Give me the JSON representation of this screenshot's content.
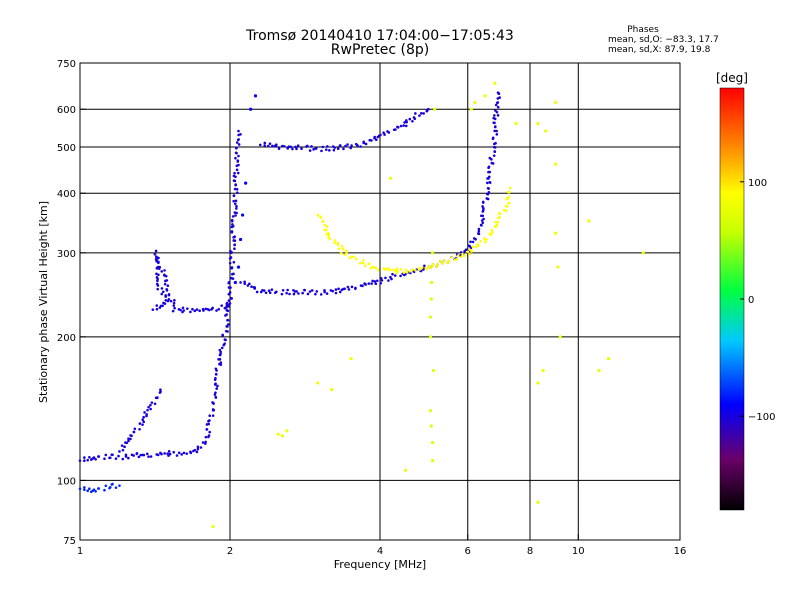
{
  "chart_data": {
    "type": "scatter",
    "title": "Tromsø 20140410 17:04:00−17:05:43",
    "subtitle": "RwPretec (8p)",
    "xlabel": "Frequency [MHz]",
    "ylabel": "Stationary phase Virtual Height [km]",
    "x_scale": "log",
    "y_scale": "log",
    "xlim": [
      1,
      16
    ],
    "ylim": [
      75,
      750
    ],
    "x_ticks": [
      1,
      2,
      4,
      6,
      8,
      10,
      16
    ],
    "y_ticks": [
      75,
      100,
      200,
      300,
      400,
      500,
      600,
      750
    ],
    "x_gridlines": [
      2,
      4,
      6,
      8,
      10
    ],
    "y_gridlines": [
      100,
      200,
      300,
      400,
      500,
      600
    ],
    "phase_stats": {
      "title": "Phases",
      "o_line": "mean, sd,O:  −83.3, 17.7",
      "x_line": "mean, sd,X:  87.9, 19.8"
    },
    "colorbar": {
      "label": "[deg]",
      "min": -180,
      "max": 180,
      "ticks": [
        "100",
        "0",
        "−100"
      ],
      "tick_values": [
        100,
        0,
        -100
      ]
    },
    "traces": [
      {
        "name": "low-trace-bottom",
        "phase": -80,
        "points": [
          [
            1.0,
            96
          ],
          [
            1.05,
            95
          ],
          [
            1.1,
            96
          ],
          [
            1.15,
            97
          ],
          [
            1.2,
            97.5
          ]
        ]
      },
      {
        "name": "E-trace",
        "phase": -100,
        "points": [
          [
            1.0,
            110
          ],
          [
            1.05,
            111
          ],
          [
            1.1,
            112
          ],
          [
            1.15,
            112
          ],
          [
            1.2,
            112
          ],
          [
            1.3,
            113
          ],
          [
            1.4,
            113
          ],
          [
            1.5,
            114
          ],
          [
            1.6,
            114
          ],
          [
            1.7,
            115
          ],
          [
            1.75,
            118
          ],
          [
            1.8,
            125
          ],
          [
            1.85,
            145
          ],
          [
            1.9,
            175
          ],
          [
            1.95,
            200
          ],
          [
            2.0,
            240
          ],
          [
            2.02,
            300
          ],
          [
            2.05,
            400
          ],
          [
            2.07,
            500
          ],
          [
            2.08,
            540
          ]
        ]
      },
      {
        "name": "E-trace-upper",
        "phase": -100,
        "points": [
          [
            1.2,
            115
          ],
          [
            1.25,
            122
          ],
          [
            1.3,
            128
          ],
          [
            1.35,
            135
          ],
          [
            1.4,
            145
          ],
          [
            1.45,
            155
          ]
        ]
      },
      {
        "name": "F1-lower",
        "phase": -100,
        "points": [
          [
            1.4,
            228
          ],
          [
            1.45,
            232
          ],
          [
            1.5,
            238
          ],
          [
            1.45,
            250
          ],
          [
            1.43,
            270
          ],
          [
            1.42,
            300
          ],
          [
            1.55,
            228
          ],
          [
            1.6,
            228
          ],
          [
            1.7,
            228
          ],
          [
            1.8,
            228
          ],
          [
            1.9,
            230
          ],
          [
            1.95,
            232
          ],
          [
            2.0,
            235
          ]
        ]
      },
      {
        "name": "F-O-trace",
        "phase": -100,
        "points": [
          [
            2.1,
            260
          ],
          [
            2.3,
            250
          ],
          [
            2.5,
            248
          ],
          [
            2.8,
            248
          ],
          [
            3.0,
            248
          ],
          [
            3.3,
            250
          ],
          [
            3.6,
            255
          ],
          [
            4.0,
            262
          ],
          [
            4.5,
            272
          ],
          [
            5.0,
            280
          ],
          [
            5.5,
            290
          ],
          [
            6.0,
            305
          ],
          [
            6.2,
            320
          ],
          [
            6.4,
            350
          ],
          [
            6.5,
            380
          ],
          [
            6.6,
            420
          ],
          [
            6.7,
            470
          ],
          [
            6.8,
            530
          ],
          [
            6.85,
            600
          ],
          [
            6.9,
            650
          ]
        ]
      },
      {
        "name": "F-X-trace",
        "phase": 90,
        "points": [
          [
            3.0,
            360
          ],
          [
            3.1,
            340
          ],
          [
            3.2,
            320
          ],
          [
            3.4,
            300
          ],
          [
            3.6,
            290
          ],
          [
            3.8,
            282
          ],
          [
            4.0,
            278
          ],
          [
            4.3,
            275
          ],
          [
            4.6,
            276
          ],
          [
            5.0,
            280
          ],
          [
            5.5,
            290
          ],
          [
            6.0,
            300
          ],
          [
            6.5,
            320
          ],
          [
            6.8,
            340
          ],
          [
            7.0,
            360
          ],
          [
            7.2,
            380
          ],
          [
            7.3,
            410
          ]
        ]
      },
      {
        "name": "upper-echo",
        "phase": -100,
        "points": [
          [
            2.3,
            505
          ],
          [
            2.6,
            500
          ],
          [
            3.0,
            495
          ],
          [
            3.3,
            497
          ],
          [
            3.6,
            505
          ],
          [
            3.9,
            520
          ],
          [
            4.2,
            540
          ],
          [
            4.5,
            560
          ],
          [
            4.8,
            585
          ],
          [
            5.0,
            600
          ]
        ]
      },
      {
        "name": "scatter-vertical-2MHz",
        "phase": -90,
        "points": [
          [
            2.05,
            260
          ],
          [
            2.08,
            280
          ],
          [
            2.1,
            320
          ],
          [
            2.12,
            360
          ],
          [
            2.15,
            420
          ],
          [
            2.2,
            600
          ],
          [
            2.25,
            640
          ]
        ]
      },
      {
        "name": "scatter-5MHz-column",
        "phase": 70,
        "points": [
          [
            5.05,
            200
          ],
          [
            5.05,
            220
          ],
          [
            5.07,
            240
          ],
          [
            5.08,
            260
          ],
          [
            5.1,
            300
          ],
          [
            5.05,
            140
          ],
          [
            5.07,
            130
          ],
          [
            5.1,
            120
          ],
          [
            5.1,
            110
          ],
          [
            5.12,
            170
          ],
          [
            5.15,
            600
          ]
        ]
      },
      {
        "name": "scatter-misc",
        "phase": 80,
        "points": [
          [
            6.1,
            600
          ],
          [
            6.2,
            620
          ],
          [
            6.5,
            640
          ],
          [
            6.8,
            680
          ],
          [
            7.5,
            560
          ],
          [
            8.3,
            560
          ],
          [
            8.3,
            160
          ],
          [
            8.5,
            170
          ],
          [
            8.6,
            540
          ],
          [
            9.0,
            620
          ],
          [
            9.0,
            460
          ],
          [
            9.0,
            330
          ],
          [
            9.1,
            280
          ],
          [
            9.2,
            200
          ],
          [
            8.3,
            90
          ],
          [
            10.5,
            350
          ],
          [
            11.0,
            170
          ],
          [
            11.5,
            180
          ],
          [
            13.5,
            300
          ],
          [
            3.5,
            180
          ],
          [
            4.5,
            105
          ],
          [
            2.5,
            125
          ],
          [
            2.6,
            127
          ],
          [
            2.55,
            124
          ],
          [
            1.85,
            80
          ],
          [
            4.2,
            430
          ],
          [
            3.0,
            160
          ],
          [
            3.2,
            155
          ]
        ]
      }
    ]
  }
}
